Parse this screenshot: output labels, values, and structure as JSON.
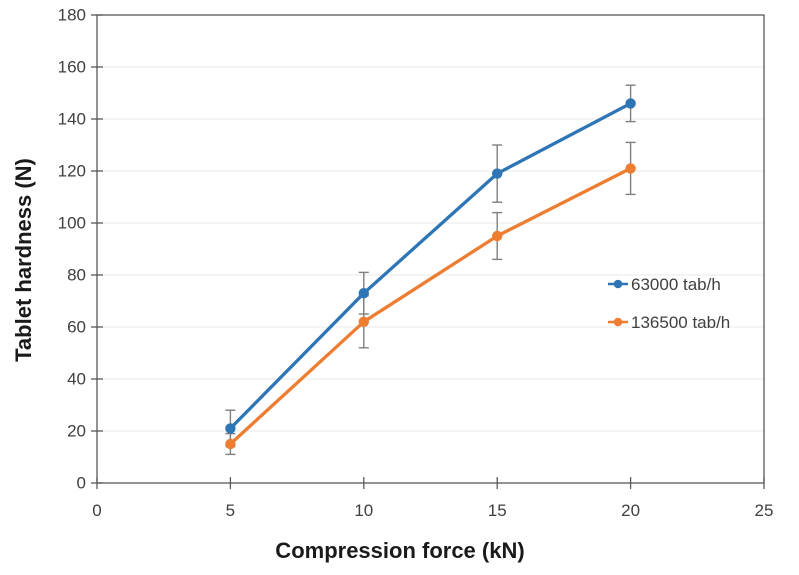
{
  "chart_data": {
    "type": "line",
    "title": "",
    "xlabel": "Compression force (kN)",
    "ylabel": "Tablet hardness (N)",
    "x": [
      5,
      10,
      15,
      20
    ],
    "x_ticks": [
      0,
      5,
      10,
      15,
      20,
      25
    ],
    "y_ticks": [
      0,
      20,
      40,
      60,
      80,
      100,
      120,
      140,
      160,
      180
    ],
    "xlim": [
      0,
      25
    ],
    "ylim": [
      0,
      180
    ],
    "grid": "horizontal",
    "legend_position": "inside-right",
    "series": [
      {
        "name": "63000 tab/h",
        "color": "#2E75B6",
        "values": [
          21,
          73,
          119,
          146
        ],
        "error": [
          7,
          8,
          11,
          7
        ]
      },
      {
        "name": "136500 tab/h",
        "color": "#ED7D31",
        "values": [
          15,
          62,
          95,
          121
        ],
        "error": [
          4,
          10,
          9,
          10
        ]
      }
    ],
    "colors": {
      "error_bar": "#7F7F7F",
      "axis": "#595959",
      "gridline": "#E8E8E8",
      "tick_text": "#404040"
    }
  }
}
